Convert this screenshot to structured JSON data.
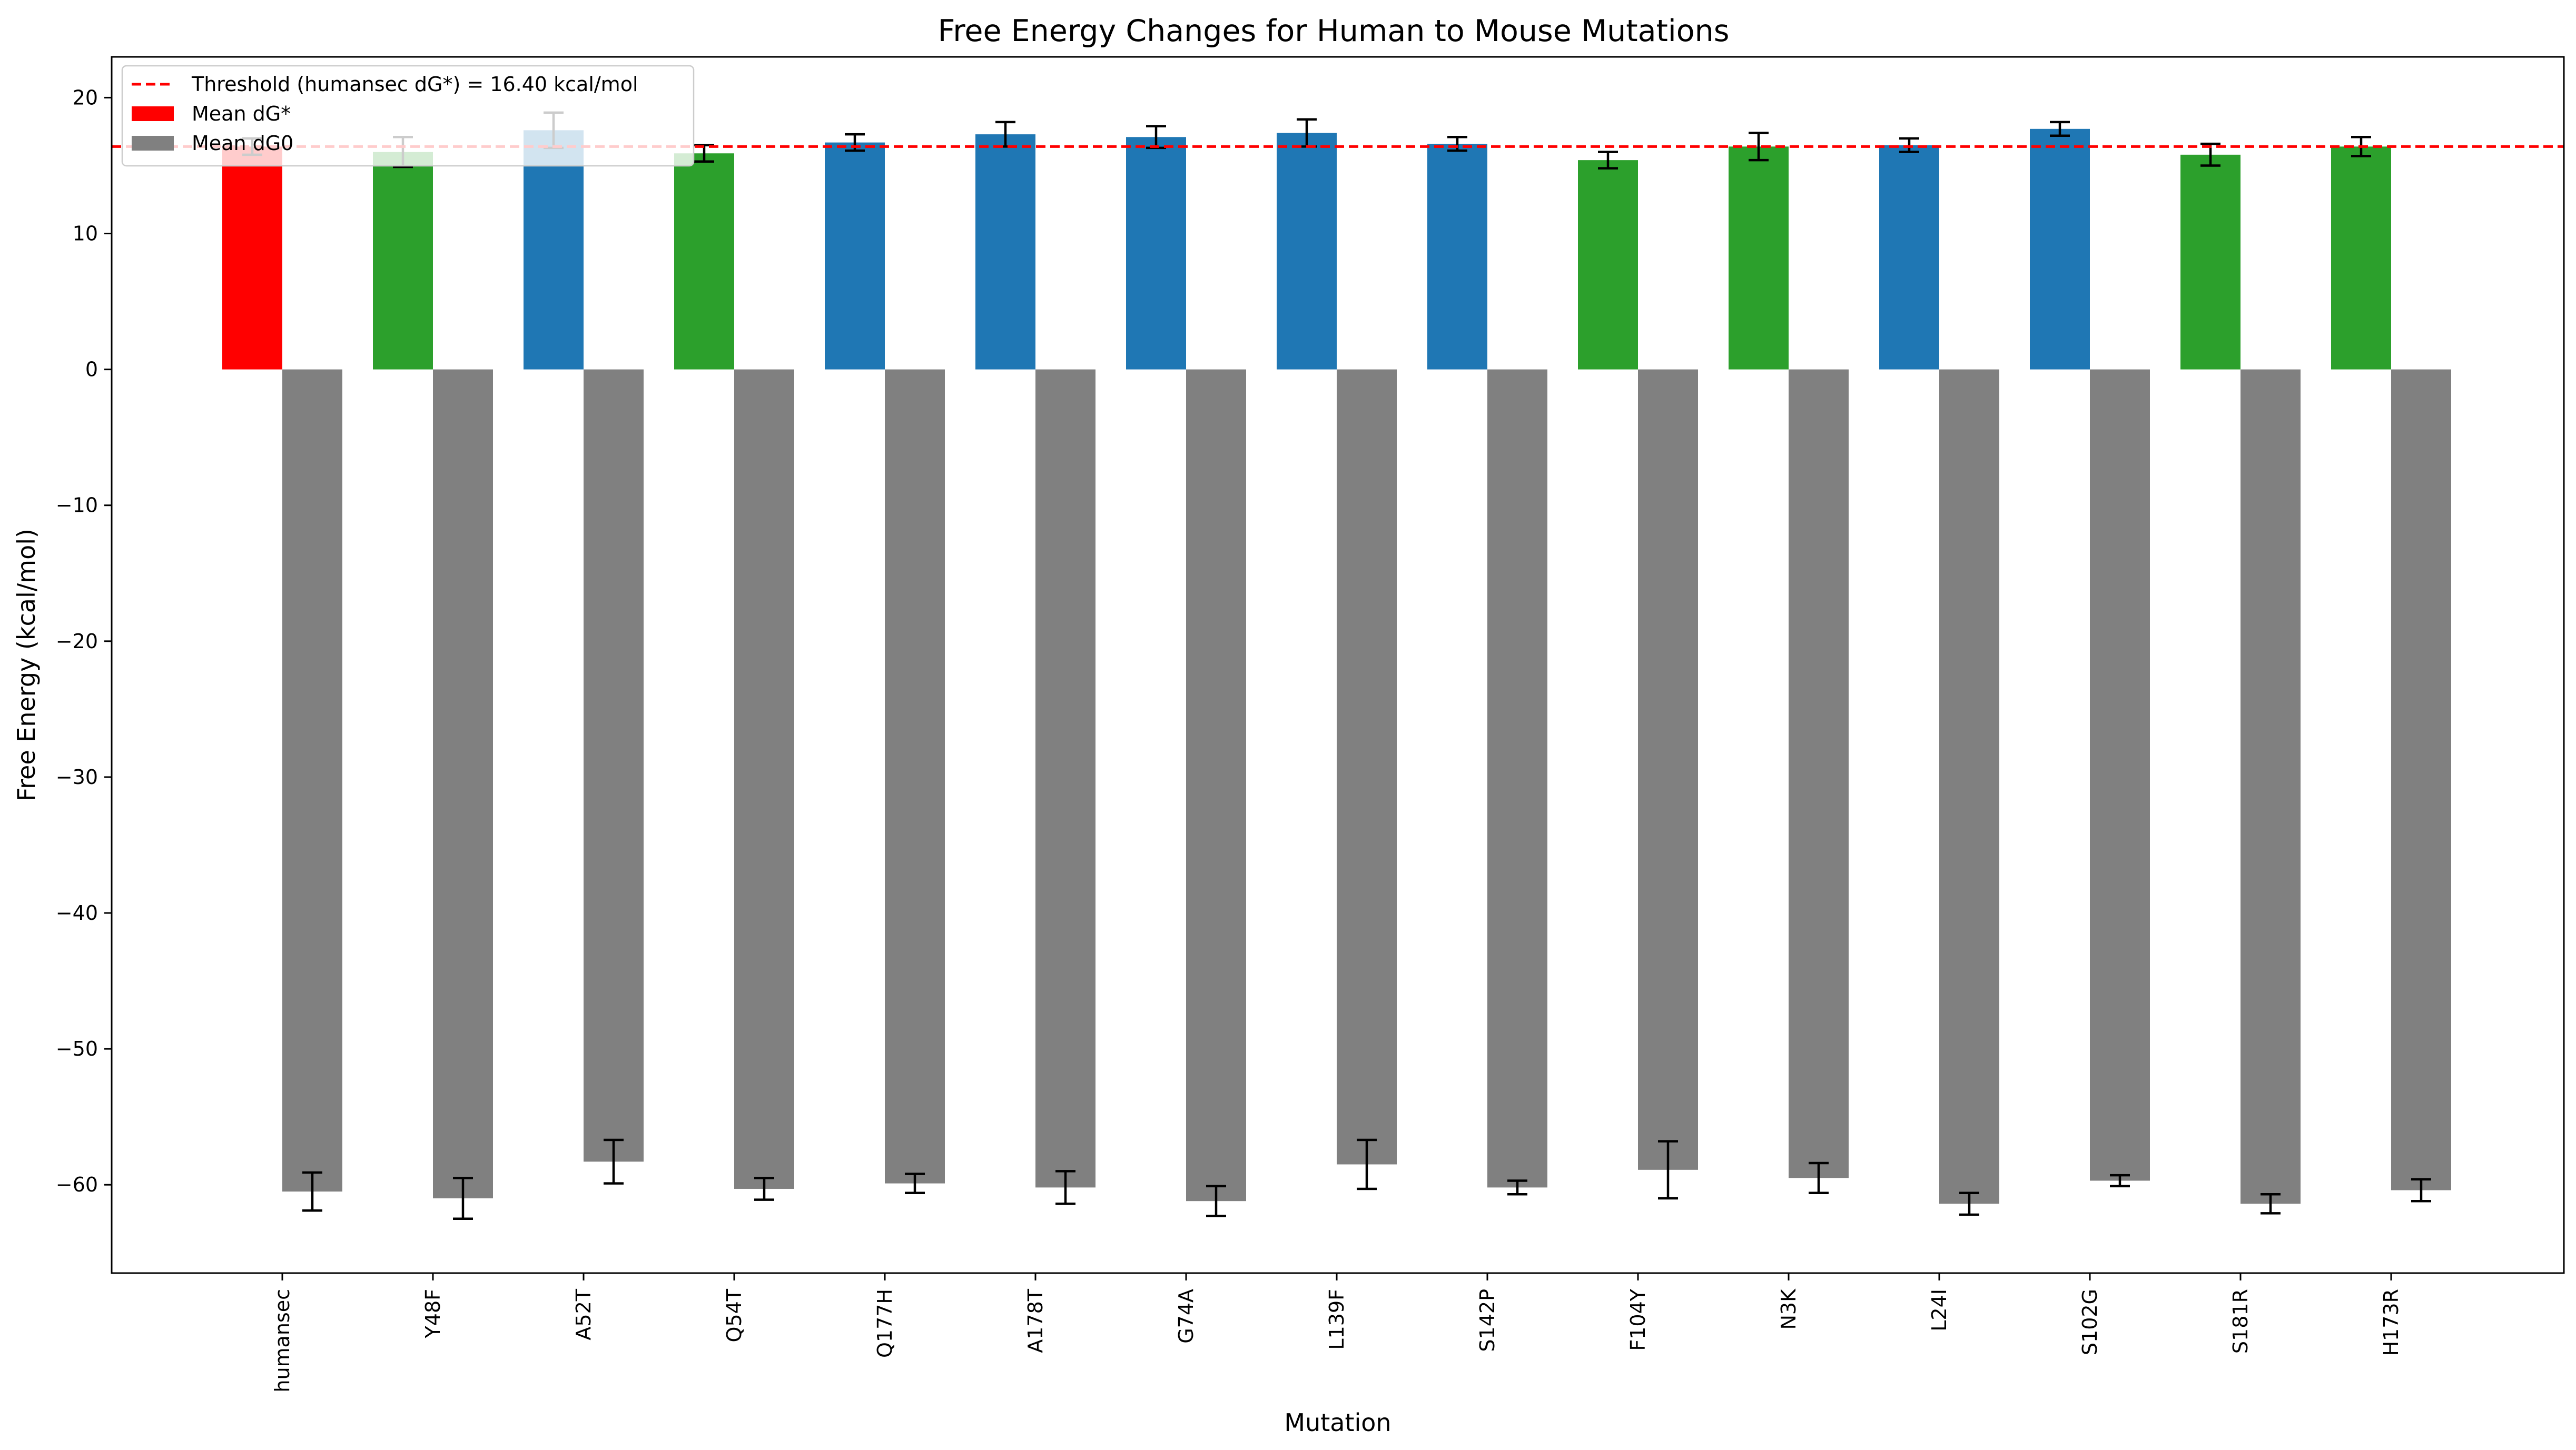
{
  "chart_data": {
    "type": "bar",
    "title": "Free Energy Changes for Human to Mouse Mutations",
    "xlabel": "Mutation",
    "ylabel": "Free Energy (kcal/mol)",
    "ylim": [
      -66.5,
      23.0
    ],
    "yticks": [
      -60,
      -50,
      -40,
      -30,
      -20,
      -10,
      0,
      10,
      20
    ],
    "grid": false,
    "legend_position": "top-left",
    "categories": [
      "humansec",
      "Y48F",
      "A52T",
      "Q54T",
      "Q177H",
      "A178T",
      "G74A",
      "L139F",
      "S142P",
      "F104Y",
      "N3K",
      "L24I",
      "S102G",
      "S181R",
      "H173R"
    ],
    "series": [
      {
        "name": "Mean dG*",
        "values": [
          16.4,
          16.0,
          17.6,
          15.9,
          16.7,
          17.3,
          17.1,
          17.4,
          16.6,
          15.4,
          16.4,
          16.5,
          17.7,
          15.8,
          16.4
        ],
        "errors": [
          0.6,
          1.1,
          1.3,
          0.6,
          0.6,
          0.9,
          0.8,
          1.0,
          0.5,
          0.6,
          1.0,
          0.5,
          0.5,
          0.8,
          0.7
        ],
        "bar_colors": [
          "#ff0000",
          "#2ca02c",
          "#1f77b4",
          "#2ca02c",
          "#1f77b4",
          "#1f77b4",
          "#1f77b4",
          "#1f77b4",
          "#1f77b4",
          "#2ca02c",
          "#2ca02c",
          "#1f77b4",
          "#1f77b4",
          "#2ca02c",
          "#2ca02c"
        ]
      },
      {
        "name": "Mean dG0",
        "values": [
          -60.5,
          -61.0,
          -58.3,
          -60.3,
          -59.9,
          -60.2,
          -61.2,
          -58.5,
          -60.2,
          -58.9,
          -59.5,
          -61.4,
          -59.7,
          -61.4,
          -60.4
        ],
        "errors": [
          1.4,
          1.5,
          1.6,
          0.8,
          0.7,
          1.2,
          1.1,
          1.8,
          0.5,
          2.1,
          1.1,
          0.8,
          0.4,
          0.7,
          0.8
        ],
        "color": "#808080"
      }
    ],
    "threshold": {
      "value": 16.4,
      "label": "Threshold (humansec dG*) = 16.40 kcal/mol",
      "color": "#ff0000",
      "style": "dashed"
    }
  }
}
